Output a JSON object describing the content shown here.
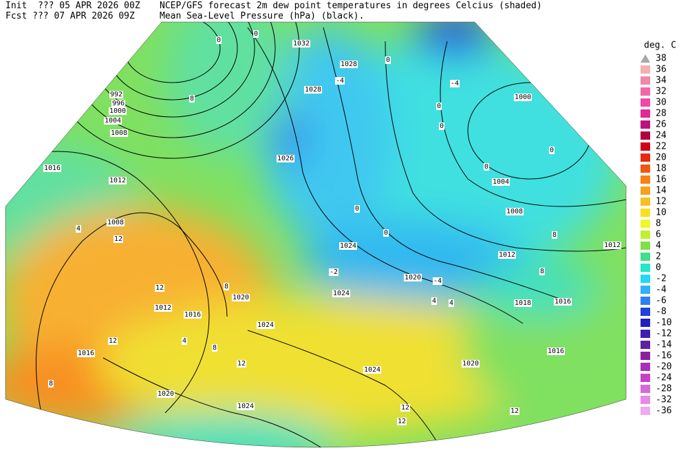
{
  "header": {
    "init": "Init  ??? 05 APR 2026 00Z",
    "fcst": "Fcst ??? 07 APR 2026 09Z",
    "title": "NCEP/GFS forecast 2m dew point temperatures in degrees Celcius (shaded)",
    "subtitle": "Mean Sea-Level Pressure (hPa) (black)."
  },
  "legend": {
    "title": "deg. C",
    "items": [
      {
        "label": "38",
        "color": "#a8a8a8"
      },
      {
        "label": "36",
        "color": "#f4b0b0"
      },
      {
        "label": "34",
        "color": "#f088a8"
      },
      {
        "label": "32",
        "color": "#f068a8"
      },
      {
        "label": "30",
        "color": "#f048a8"
      },
      {
        "label": "28",
        "color": "#e02898"
      },
      {
        "label": "26",
        "color": "#c01080"
      },
      {
        "label": "24",
        "color": "#b00040"
      },
      {
        "label": "22",
        "color": "#d00018"
      },
      {
        "label": "20",
        "color": "#e82810"
      },
      {
        "label": "18",
        "color": "#f05810"
      },
      {
        "label": "16",
        "color": "#f88018"
      },
      {
        "label": "14",
        "color": "#f8a020"
      },
      {
        "label": "12",
        "color": "#f8c020"
      },
      {
        "label": "10",
        "color": "#f8e020"
      },
      {
        "label": "8",
        "color": "#f0f828"
      },
      {
        "label": "6",
        "color": "#c0f030"
      },
      {
        "label": "4",
        "color": "#80e048"
      },
      {
        "label": "2",
        "color": "#40e088"
      },
      {
        "label": "0",
        "color": "#20e8c8"
      },
      {
        "label": "-2",
        "color": "#20d8f8"
      },
      {
        "label": "-4",
        "color": "#30b0f8"
      },
      {
        "label": "-6",
        "color": "#3080f0"
      },
      {
        "label": "-8",
        "color": "#2040e0"
      },
      {
        "label": "-10",
        "color": "#2020c0"
      },
      {
        "label": "-12",
        "color": "#4020b0"
      },
      {
        "label": "-14",
        "color": "#6020a0"
      },
      {
        "label": "-16",
        "color": "#8820a0"
      },
      {
        "label": "-20",
        "color": "#a830b8"
      },
      {
        "label": "-24",
        "color": "#c840c8"
      },
      {
        "label": "-28",
        "color": "#d868d8"
      },
      {
        "label": "-32",
        "color": "#e888e8"
      },
      {
        "label": "-36",
        "color": "#f0a8f0"
      }
    ]
  },
  "isobar_labels": [
    "1032",
    "1028",
    "1028",
    "1026",
    "992",
    "996",
    "1000",
    "1004",
    "1008",
    "1016",
    "1012",
    "1008",
    "1024",
    "1020",
    "1024",
    "1020",
    "1024",
    "1012",
    "1016",
    "1016",
    "1020",
    "1024",
    "1024",
    "1020",
    "1016",
    "1016",
    "1018",
    "1012",
    "1012",
    "1008",
    "1004",
    "1000"
  ],
  "dewpoint_labels": [
    "0",
    "0",
    "0",
    "0",
    "0",
    "0",
    "0",
    "0",
    "0",
    "-4",
    "-4",
    "-4",
    "4",
    "4",
    "4",
    "4",
    "8",
    "8",
    "8",
    "8",
    "8",
    "8",
    "12",
    "12",
    "12",
    "12",
    "12",
    "12",
    "12",
    "-2"
  ]
}
